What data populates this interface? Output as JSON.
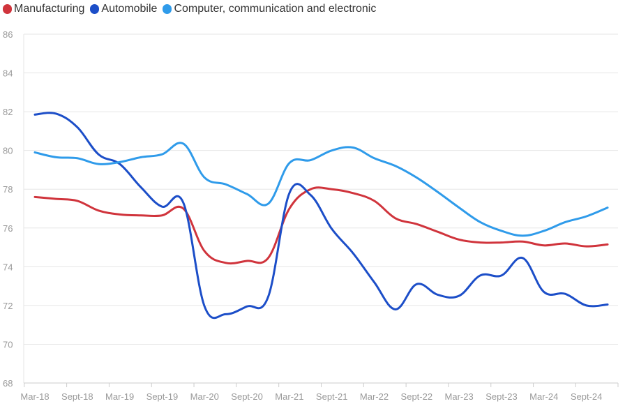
{
  "chart_data": {
    "type": "line",
    "title": "",
    "xlabel": "",
    "ylabel": "",
    "ylim": [
      68,
      86
    ],
    "y_ticks": [
      68,
      70,
      72,
      74,
      76,
      78,
      80,
      82,
      84,
      86
    ],
    "x": [
      "Mar-18",
      "Jun-18",
      "Sept-18",
      "Dec-18",
      "Mar-19",
      "Jun-19",
      "Sept-19",
      "Dec-19",
      "Mar-20",
      "Jun-20",
      "Sept-20",
      "Dec-20",
      "Mar-21",
      "Jun-21",
      "Sept-21",
      "Dec-21",
      "Mar-22",
      "Jun-22",
      "Sept-22",
      "Dec-22",
      "Mar-23",
      "Jun-23",
      "Sept-23",
      "Dec-23",
      "Mar-24",
      "Jun-24",
      "Sept-24",
      "Dec-24"
    ],
    "x_tick_labels": [
      "Mar-18",
      "Sept-18",
      "Mar-19",
      "Sept-19",
      "Mar-20",
      "Sept-20",
      "Mar-21",
      "Sept-21",
      "Mar-22",
      "Sept-22",
      "Mar-23",
      "Sept-23",
      "Mar-24",
      "Sept-24"
    ],
    "grid": true,
    "legend_position": "top-left",
    "series": [
      {
        "name": "Manufacturing",
        "color": "#d0343c",
        "values": [
          77.6,
          77.5,
          77.4,
          76.9,
          76.7,
          76.65,
          76.65,
          77.0,
          74.8,
          74.2,
          74.3,
          74.45,
          77.0,
          78.0,
          78.0,
          77.8,
          77.4,
          76.5,
          76.2,
          75.8,
          75.4,
          75.25,
          75.25,
          75.3,
          75.1,
          75.2,
          75.05,
          75.15
        ]
      },
      {
        "name": "Automobile",
        "color": "#1c4ec8",
        "values": [
          81.85,
          81.9,
          81.2,
          79.8,
          79.3,
          78.1,
          77.1,
          77.3,
          71.95,
          71.55,
          71.95,
          72.45,
          77.8,
          77.7,
          75.95,
          74.7,
          73.2,
          71.8,
          73.1,
          72.55,
          72.5,
          73.55,
          73.55,
          74.45,
          72.7,
          72.6,
          72.0,
          72.05
        ]
      },
      {
        "name": "Computer, communication and electronic",
        "color": "#2f9bea",
        "values": [
          79.9,
          79.65,
          79.6,
          79.3,
          79.4,
          79.65,
          79.8,
          80.35,
          78.6,
          78.25,
          77.75,
          77.25,
          79.35,
          79.5,
          80.0,
          80.15,
          79.6,
          79.2,
          78.6,
          77.85,
          77.05,
          76.3,
          75.85,
          75.6,
          75.85,
          76.3,
          76.6,
          77.05
        ]
      }
    ]
  }
}
